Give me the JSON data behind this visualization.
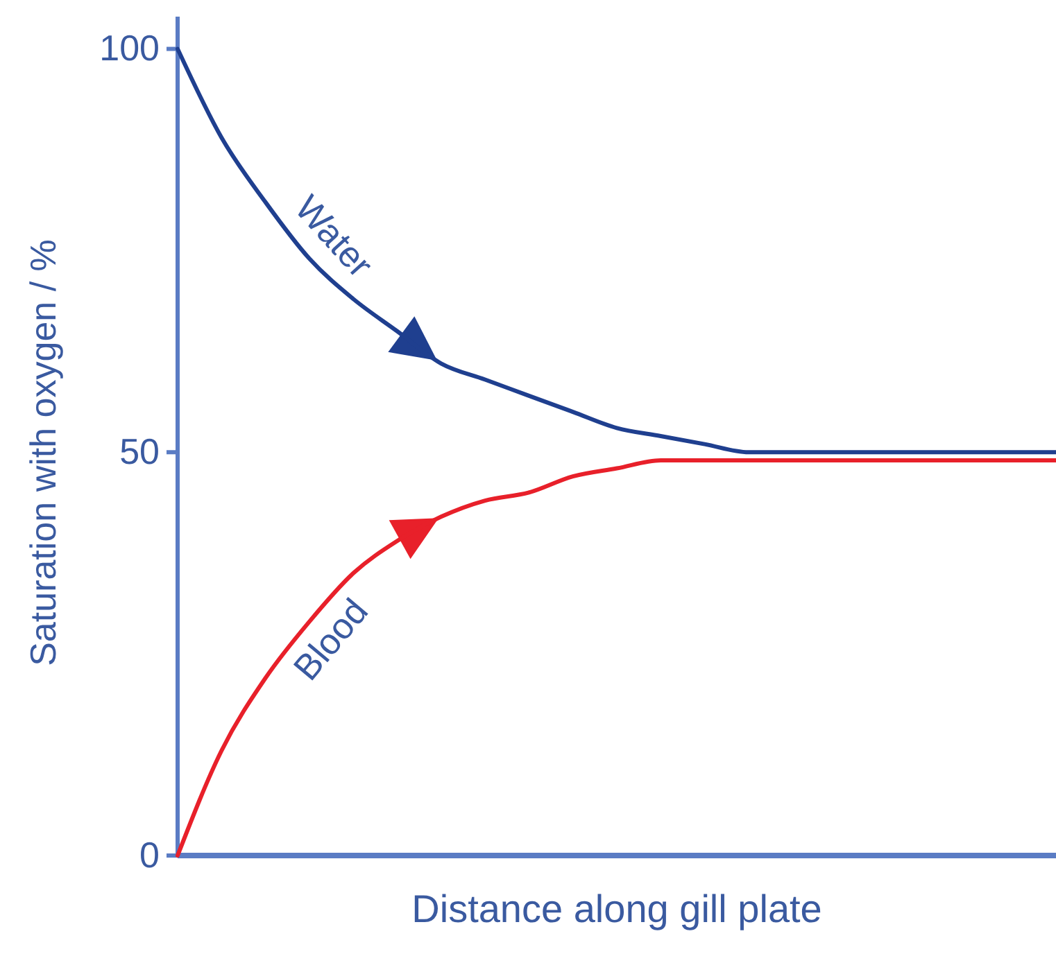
{
  "chart_data": {
    "type": "line",
    "xlabel": "Distance along gill plate",
    "ylabel": "Saturation with oxygen / %",
    "categories": [
      null,
      null,
      null,
      null,
      null,
      null,
      null,
      null,
      null,
      null,
      null,
      null,
      null,
      null,
      null,
      null,
      null,
      null,
      null,
      null,
      null
    ],
    "series": [
      {
        "name": "Water",
        "color": "#1f3f8f",
        "values": [
          100,
          89,
          81,
          74,
          69,
          65,
          61,
          59,
          57,
          55,
          53,
          52,
          51,
          50,
          50,
          50,
          50,
          50,
          50,
          50,
          50
        ]
      },
      {
        "name": "Blood",
        "color": "#e8202a",
        "values": [
          0,
          13,
          22,
          29,
          35,
          39,
          42,
          44,
          45,
          47,
          48,
          49,
          49,
          49,
          49,
          49,
          49,
          49,
          49,
          49,
          49
        ]
      }
    ],
    "ylim": [
      0,
      104
    ],
    "yticks": [
      0,
      50,
      100
    ]
  }
}
